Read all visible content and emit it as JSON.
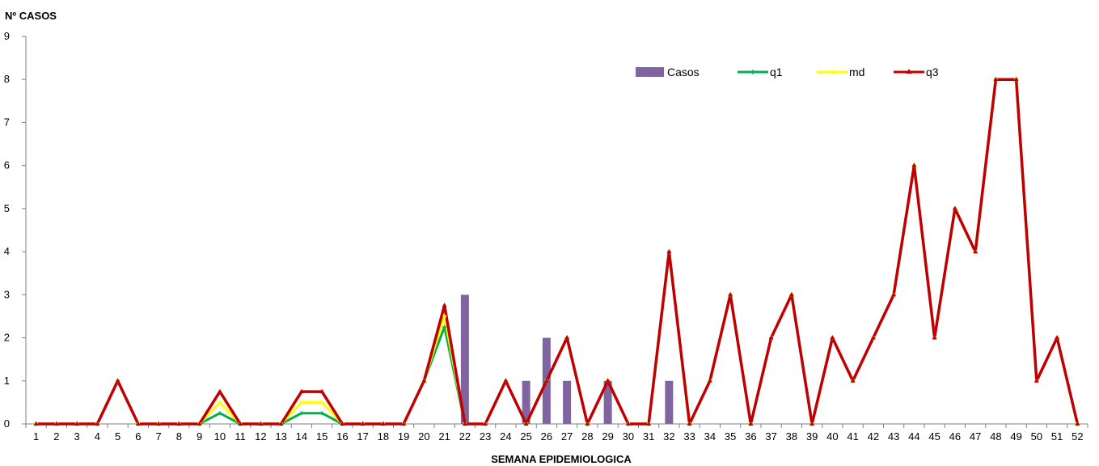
{
  "chart_data": {
    "type": "bar",
    "title": "",
    "ylabel": "Nº CASOS",
    "xlabel": "SEMANA EPIDEMIOLOGICA",
    "ylim": [
      0,
      9
    ],
    "yticks": [
      "0",
      "1",
      "2",
      "3",
      "4",
      "5",
      "6",
      "7",
      "8",
      "9"
    ],
    "grid": false,
    "legend_position": "top-right",
    "categories": [
      "1",
      "2",
      "3",
      "4",
      "5",
      "6",
      "7",
      "8",
      "9",
      "10",
      "11",
      "12",
      "13",
      "14",
      "15",
      "16",
      "17",
      "18",
      "19",
      "20",
      "21",
      "22",
      "23",
      "24",
      "25",
      "26",
      "27",
      "28",
      "29",
      "30",
      "31",
      "32",
      "33",
      "34",
      "35",
      "36",
      "37",
      "38",
      "39",
      "40",
      "41",
      "42",
      "43",
      "44",
      "45",
      "46",
      "47",
      "48",
      "49",
      "50",
      "51",
      "52"
    ],
    "bars": {
      "name": "Casos",
      "color": "#8064a2",
      "values": [
        0,
        0,
        0,
        0,
        0,
        0,
        0,
        0,
        0,
        0,
        0,
        0,
        0,
        0,
        0,
        0,
        0,
        0,
        0,
        0,
        0,
        3,
        0,
        0,
        1,
        2,
        1,
        0,
        1,
        0,
        0,
        1,
        0,
        0,
        0,
        0,
        0,
        0,
        0,
        0,
        0,
        0,
        0,
        0,
        0,
        0,
        0,
        0,
        0,
        0,
        0,
        0
      ]
    },
    "series": [
      {
        "name": "q1",
        "color": "#00b050",
        "marker": "cross",
        "values": [
          0,
          0,
          0,
          0,
          1,
          0,
          0,
          0,
          0,
          0.25,
          0,
          0,
          0,
          0.25,
          0.25,
          0,
          0,
          0,
          0,
          1,
          2.25,
          0,
          0,
          1,
          0,
          1,
          2,
          0,
          1,
          0,
          0,
          4,
          0,
          1,
          3,
          0,
          2,
          3,
          0,
          2,
          1,
          2,
          3,
          6,
          2,
          5,
          4,
          8,
          8,
          1,
          2,
          0
        ]
      },
      {
        "name": "md",
        "color": "#ffff00",
        "marker": "square",
        "values": [
          0,
          0,
          0,
          0,
          1,
          0,
          0,
          0,
          0,
          0.5,
          0,
          0,
          0,
          0.5,
          0.5,
          0,
          0,
          0,
          0,
          1,
          2.5,
          0,
          0,
          1,
          0,
          1,
          2,
          0,
          1,
          0,
          0,
          4,
          0,
          1,
          3,
          0,
          2,
          3,
          0,
          2,
          1,
          2,
          3,
          6,
          2,
          5,
          4,
          8,
          8,
          1,
          2,
          0
        ]
      },
      {
        "name": "q3",
        "color": "#c00000",
        "marker": "triangle",
        "values": [
          0,
          0,
          0,
          0,
          1,
          0,
          0,
          0,
          0,
          0.75,
          0,
          0,
          0,
          0.75,
          0.75,
          0,
          0,
          0,
          0,
          1,
          2.75,
          0,
          0,
          1,
          0,
          1,
          2,
          0,
          1,
          0,
          0,
          4,
          0,
          1,
          3,
          0,
          2,
          3,
          0,
          2,
          1,
          2,
          3,
          6,
          2,
          5,
          4,
          8,
          8,
          1,
          2,
          0
        ]
      }
    ]
  }
}
